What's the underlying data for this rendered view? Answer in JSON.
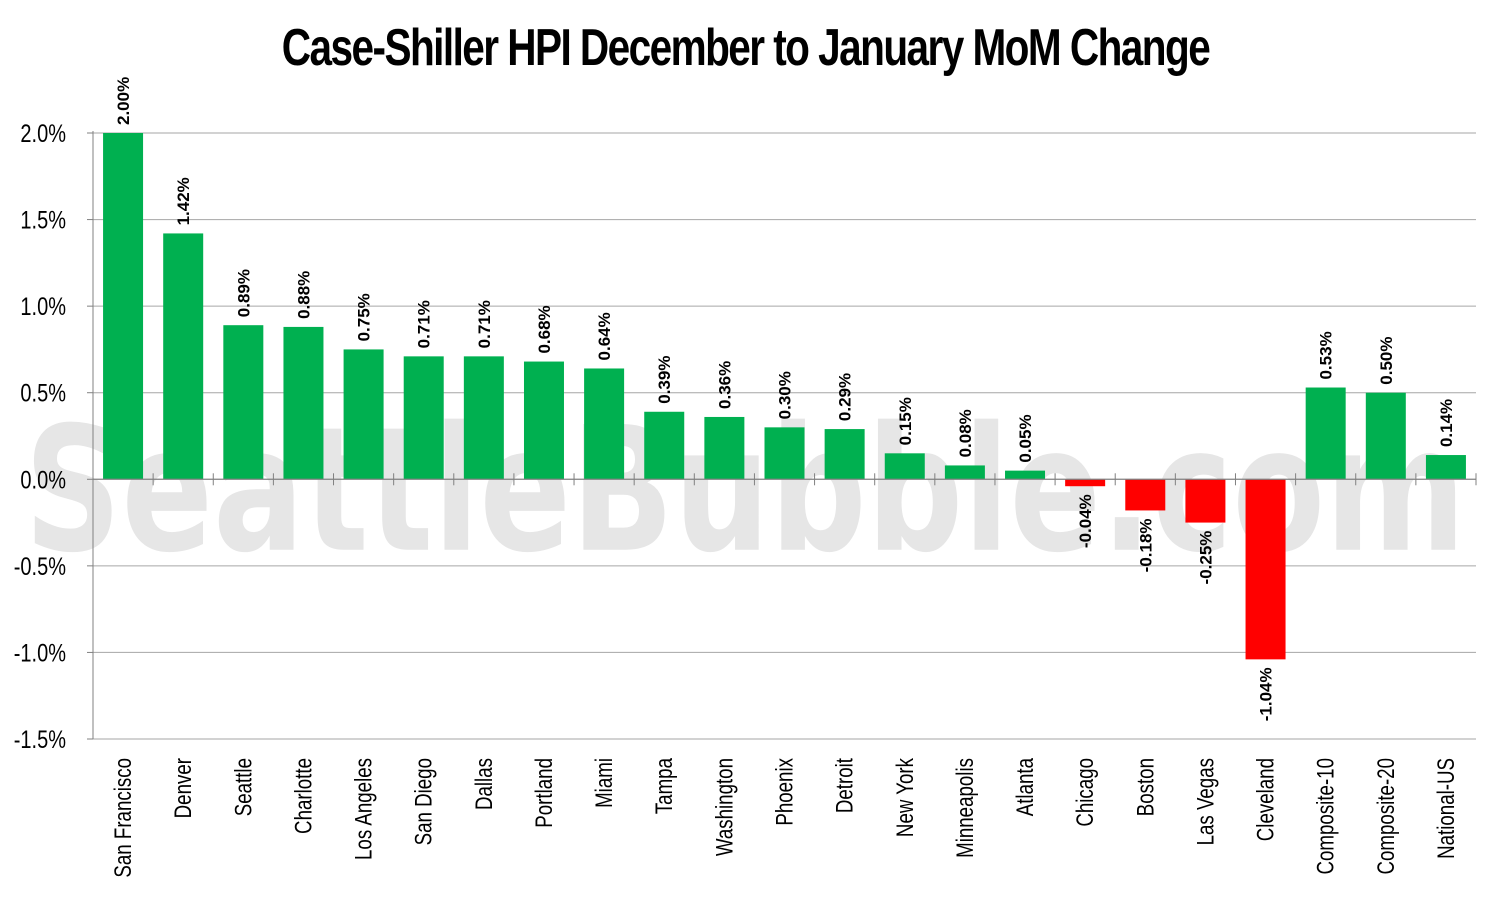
{
  "chart_data": {
    "type": "bar",
    "title": "Case-Shiller HPI December to January MoM Change",
    "watermark": "SeattleBubble.com",
    "categories": [
      "San Francisco",
      "Denver",
      "Seattle",
      "Charlotte",
      "Los Angeles",
      "San Diego",
      "Dallas",
      "Portland",
      "Miami",
      "Tampa",
      "Washington",
      "Phoenix",
      "Detroit",
      "New York",
      "Minneapolis",
      "Atlanta",
      "Chicago",
      "Boston",
      "Las Vegas",
      "Cleveland",
      "Composite-10",
      "Composite-20",
      "National-US"
    ],
    "values": [
      2.0,
      1.42,
      0.89,
      0.88,
      0.75,
      0.71,
      0.71,
      0.68,
      0.64,
      0.39,
      0.36,
      0.3,
      0.29,
      0.15,
      0.08,
      0.05,
      -0.04,
      -0.18,
      -0.25,
      -1.04,
      0.53,
      0.5,
      0.14
    ],
    "data_labels": [
      "2.00%",
      "1.42%",
      "0.89%",
      "0.88%",
      "0.75%",
      "0.71%",
      "0.71%",
      "0.68%",
      "0.64%",
      "0.39%",
      "0.36%",
      "0.30%",
      "0.29%",
      "0.15%",
      "0.08%",
      "0.05%",
      "-0.04%",
      "-0.18%",
      "-0.25%",
      "-1.04%",
      "0.53%",
      "0.50%",
      "0.14%"
    ],
    "y_ticks": [
      2.0,
      1.5,
      1.0,
      0.5,
      0.0,
      -0.5,
      -1.0,
      -1.5
    ],
    "y_tick_labels": [
      "2.0%",
      "1.5%",
      "1.0%",
      "0.5%",
      "0.0%",
      "-0.5%",
      "-1.0%",
      "-1.5%"
    ],
    "ylim": [
      -1.5,
      2.0
    ],
    "grid": true,
    "legend": false,
    "colors": {
      "positive": "#00b050",
      "negative": "#ff0000",
      "grid": "#a6a6a6",
      "axis": "#808080"
    }
  }
}
